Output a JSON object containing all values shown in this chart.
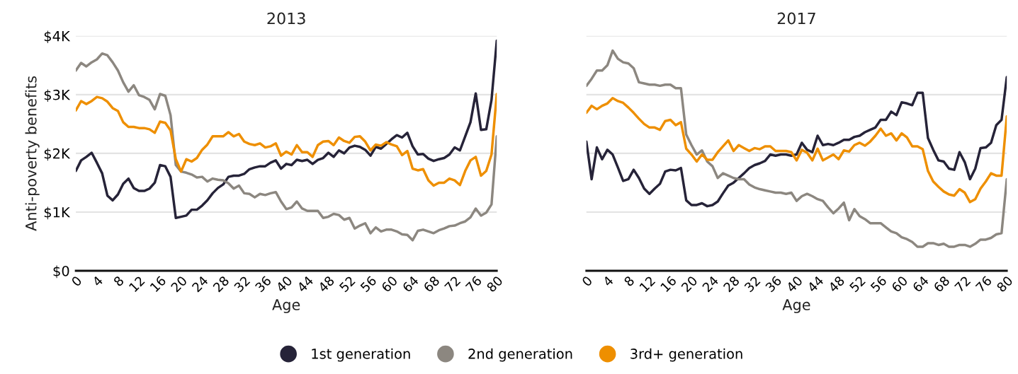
{
  "chart_data": [
    {
      "type": "line",
      "title": "2013",
      "xlabel": "Age",
      "ylabel": "Anti-poverty benefits",
      "x": [
        0,
        1,
        2,
        3,
        4,
        5,
        6,
        7,
        8,
        9,
        10,
        11,
        12,
        13,
        14,
        15,
        16,
        17,
        18,
        19,
        20,
        21,
        22,
        23,
        24,
        25,
        26,
        27,
        28,
        29,
        30,
        31,
        32,
        33,
        34,
        35,
        36,
        37,
        38,
        39,
        40,
        41,
        42,
        43,
        44,
        45,
        46,
        47,
        48,
        49,
        50,
        51,
        52,
        53,
        54,
        55,
        56,
        57,
        58,
        59,
        60,
        61,
        62,
        63,
        64,
        65,
        66,
        67,
        68,
        69,
        70,
        71,
        72,
        73,
        74,
        75,
        76,
        77,
        78,
        79,
        80
      ],
      "xlim": [
        0,
        80
      ],
      "xticks": [
        0,
        4,
        8,
        12,
        16,
        20,
        24,
        28,
        32,
        36,
        40,
        44,
        48,
        52,
        56,
        60,
        64,
        68,
        72,
        76,
        80
      ],
      "ylim": [
        0,
        4000
      ],
      "yticks": [
        {
          "value": 0,
          "label": "$0"
        },
        {
          "value": 1000,
          "label": "$1K"
        },
        {
          "value": 2000,
          "label": "$2K"
        },
        {
          "value": 3000,
          "label": "$3K"
        },
        {
          "value": 4000,
          "label": "$4K"
        }
      ],
      "grid": "y",
      "legend": "bottom",
      "marker": "none",
      "line_style": "solid",
      "series": [
        {
          "name": "1st generation",
          "color": "#262338",
          "values": [
            1700,
            1880,
            1940,
            2010,
            1840,
            1660,
            1280,
            1200,
            1300,
            1480,
            1570,
            1410,
            1360,
            1360,
            1400,
            1500,
            1800,
            1780,
            1600,
            900,
            920,
            940,
            1040,
            1040,
            1110,
            1200,
            1320,
            1410,
            1470,
            1600,
            1620,
            1620,
            1650,
            1730,
            1760,
            1780,
            1780,
            1840,
            1880,
            1740,
            1820,
            1800,
            1890,
            1870,
            1890,
            1820,
            1890,
            1920,
            2010,
            1940,
            2050,
            2000,
            2100,
            2130,
            2110,
            2060,
            1960,
            2110,
            2080,
            2160,
            2240,
            2310,
            2270,
            2350,
            2120,
            1980,
            1990,
            1910,
            1870,
            1900,
            1920,
            1980,
            2100,
            2050,
            2290,
            2530,
            3020,
            2400,
            2410,
            2910,
            3920
          ]
        },
        {
          "name": "2nd generation",
          "color": "#8c8780",
          "values": [
            3410,
            3540,
            3480,
            3550,
            3600,
            3700,
            3670,
            3550,
            3410,
            3210,
            3050,
            3160,
            2990,
            2960,
            2910,
            2750,
            3010,
            2980,
            2650,
            1800,
            1690,
            1670,
            1640,
            1590,
            1600,
            1520,
            1570,
            1550,
            1540,
            1490,
            1400,
            1450,
            1320,
            1310,
            1250,
            1310,
            1290,
            1320,
            1340,
            1180,
            1050,
            1080,
            1180,
            1060,
            1020,
            1020,
            1020,
            900,
            920,
            970,
            950,
            870,
            900,
            720,
            770,
            810,
            640,
            740,
            670,
            700,
            700,
            670,
            620,
            610,
            520,
            680,
            700,
            670,
            640,
            690,
            720,
            760,
            770,
            810,
            840,
            910,
            1060,
            940,
            990,
            1130,
            2290
          ]
        },
        {
          "name": "3rd+ generation",
          "color": "#ee8f00",
          "values": [
            2730,
            2890,
            2840,
            2890,
            2960,
            2940,
            2880,
            2770,
            2720,
            2530,
            2450,
            2450,
            2430,
            2430,
            2410,
            2350,
            2540,
            2520,
            2390,
            1900,
            1690,
            1900,
            1860,
            1920,
            2060,
            2150,
            2290,
            2290,
            2290,
            2360,
            2290,
            2330,
            2200,
            2160,
            2140,
            2170,
            2100,
            2120,
            2170,
            1960,
            2030,
            1980,
            2140,
            2020,
            2020,
            1940,
            2140,
            2200,
            2210,
            2140,
            2270,
            2210,
            2180,
            2280,
            2290,
            2200,
            2050,
            2150,
            2130,
            2190,
            2150,
            2120,
            1970,
            2040,
            1740,
            1710,
            1730,
            1540,
            1450,
            1500,
            1500,
            1570,
            1540,
            1460,
            1700,
            1880,
            1940,
            1620,
            1700,
            1980,
            3010
          ]
        }
      ]
    },
    {
      "type": "line",
      "title": "2017",
      "xlabel": "Age",
      "x": [
        0,
        1,
        2,
        3,
        4,
        5,
        6,
        7,
        8,
        9,
        10,
        11,
        12,
        13,
        14,
        15,
        16,
        17,
        18,
        19,
        20,
        21,
        22,
        23,
        24,
        25,
        26,
        27,
        28,
        29,
        30,
        31,
        32,
        33,
        34,
        35,
        36,
        37,
        38,
        39,
        40,
        41,
        42,
        43,
        44,
        45,
        46,
        47,
        48,
        49,
        50,
        51,
        52,
        53,
        54,
        55,
        56,
        57,
        58,
        59,
        60,
        61,
        62,
        63,
        64,
        65,
        66,
        67,
        68,
        69,
        70,
        71,
        72,
        73,
        74,
        75,
        76,
        77,
        78,
        79,
        80
      ],
      "xlim": [
        0,
        80
      ],
      "xticks": [
        0,
        4,
        8,
        12,
        16,
        20,
        24,
        28,
        32,
        36,
        40,
        44,
        48,
        52,
        56,
        60,
        64,
        68,
        72,
        76,
        80
      ],
      "ylim": [
        0,
        4000
      ],
      "yticks": [
        0,
        1000,
        2000,
        3000,
        4000
      ],
      "tick_labels": "x",
      "grid": "y",
      "marker": "none",
      "line_style": "solid",
      "series": [
        {
          "name": "1st generation",
          "color": "#262338",
          "values": [
            2200,
            1560,
            2100,
            1900,
            2060,
            1980,
            1760,
            1530,
            1560,
            1720,
            1580,
            1400,
            1310,
            1400,
            1480,
            1690,
            1720,
            1710,
            1750,
            1200,
            1120,
            1120,
            1150,
            1100,
            1120,
            1180,
            1320,
            1450,
            1500,
            1580,
            1660,
            1750,
            1800,
            1830,
            1870,
            1980,
            1960,
            1980,
            1980,
            1960,
            1980,
            2180,
            2060,
            2020,
            2300,
            2140,
            2160,
            2140,
            2180,
            2230,
            2230,
            2280,
            2300,
            2360,
            2400,
            2440,
            2570,
            2570,
            2710,
            2650,
            2870,
            2850,
            2820,
            3030,
            3030,
            2260,
            2060,
            1880,
            1860,
            1740,
            1720,
            2020,
            1850,
            1560,
            1740,
            2090,
            2100,
            2180,
            2480,
            2570,
            3300
          ]
        },
        {
          "name": "2nd generation",
          "color": "#8c8780",
          "values": [
            3150,
            3270,
            3410,
            3410,
            3500,
            3750,
            3610,
            3550,
            3530,
            3450,
            3210,
            3190,
            3170,
            3170,
            3150,
            3170,
            3170,
            3110,
            3110,
            2320,
            2140,
            1980,
            2050,
            1860,
            1780,
            1580,
            1660,
            1620,
            1580,
            1560,
            1560,
            1470,
            1420,
            1390,
            1370,
            1350,
            1330,
            1330,
            1310,
            1330,
            1190,
            1270,
            1310,
            1270,
            1220,
            1190,
            1080,
            980,
            1060,
            1160,
            860,
            1050,
            930,
            880,
            810,
            810,
            810,
            740,
            670,
            640,
            570,
            540,
            490,
            410,
            410,
            470,
            470,
            440,
            460,
            410,
            410,
            440,
            440,
            410,
            460,
            530,
            530,
            560,
            620,
            640,
            1560
          ]
        },
        {
          "name": "3rd+ generation",
          "color": "#ee8f00",
          "values": [
            2690,
            2810,
            2750,
            2810,
            2850,
            2940,
            2890,
            2860,
            2780,
            2690,
            2590,
            2500,
            2440,
            2440,
            2400,
            2550,
            2570,
            2480,
            2530,
            2080,
            1980,
            1860,
            1980,
            1890,
            1890,
            2020,
            2120,
            2220,
            2040,
            2140,
            2090,
            2040,
            2090,
            2070,
            2120,
            2120,
            2040,
            2040,
            2040,
            2020,
            1880,
            2060,
            2010,
            1880,
            2080,
            1880,
            1930,
            1980,
            1900,
            2050,
            2030,
            2140,
            2180,
            2130,
            2200,
            2300,
            2420,
            2300,
            2340,
            2220,
            2340,
            2270,
            2120,
            2120,
            2070,
            1700,
            1520,
            1430,
            1350,
            1300,
            1280,
            1390,
            1330,
            1170,
            1220,
            1400,
            1520,
            1660,
            1620,
            1620,
            2630
          ]
        }
      ]
    }
  ]
}
